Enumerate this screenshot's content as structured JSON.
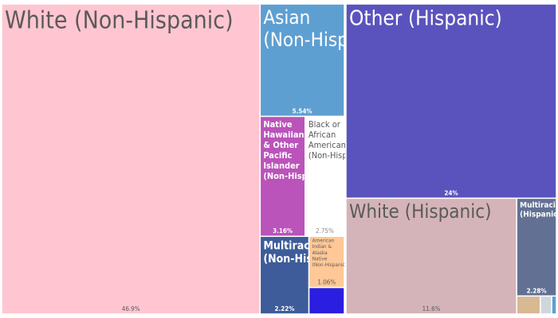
{
  "chart_data": {
    "type": "treemap",
    "title": "",
    "groups": [
      {
        "name": "Non-Hispanic",
        "segments": [
          {
            "label": "White (Non-Hispanic)",
            "value": 46.9,
            "value_label": "46.9%",
            "color": "#FFC6D1"
          },
          {
            "label": "Asian (Non-Hispanic)",
            "value": 5.54,
            "value_label": "5.54%",
            "color": "#5E9FD1"
          },
          {
            "label": "Native Hawaiian & Other Pacific Islander (Non-Hispanic)",
            "value": 3.16,
            "value_label": "3.16%",
            "color": "#BA53BA"
          },
          {
            "label": "Black or African American (Non-Hispanic)",
            "value": 2.75,
            "value_label": "2.75%",
            "color": "#FFFFFF"
          },
          {
            "label": "Multiracial (Non-Hispanic)",
            "value": 2.22,
            "value_label": "2.22%",
            "color": "#3E5C99"
          },
          {
            "label": "American Indian & Alaska Native (Non-Hispanic)",
            "value": 1.06,
            "value_label": "1.06%",
            "color": "#FFC896"
          },
          {
            "label": "",
            "value": 0.55,
            "value_label": "",
            "color": "#2A1EE0"
          }
        ]
      },
      {
        "name": "Hispanic",
        "segments": [
          {
            "label": "Other (Hispanic)",
            "value": 24,
            "value_label": "24%",
            "color": "#5B53BD"
          },
          {
            "label": "White (Hispanic)",
            "value": 11.6,
            "value_label": "11.6%",
            "color": "#D4B4B8"
          },
          {
            "label": "Multiracial (Hispanic)",
            "value": 2.28,
            "value_label": "2.28%",
            "color": "#627193"
          },
          {
            "label": "",
            "value": 0.25,
            "value_label": "",
            "color": "#D9B894"
          },
          {
            "label": "",
            "value": 0.12,
            "value_label": "",
            "color": "#D0D6DC"
          },
          {
            "label": "",
            "value": 0.05,
            "value_label": "",
            "color": "#5E9FD1"
          }
        ]
      }
    ]
  }
}
